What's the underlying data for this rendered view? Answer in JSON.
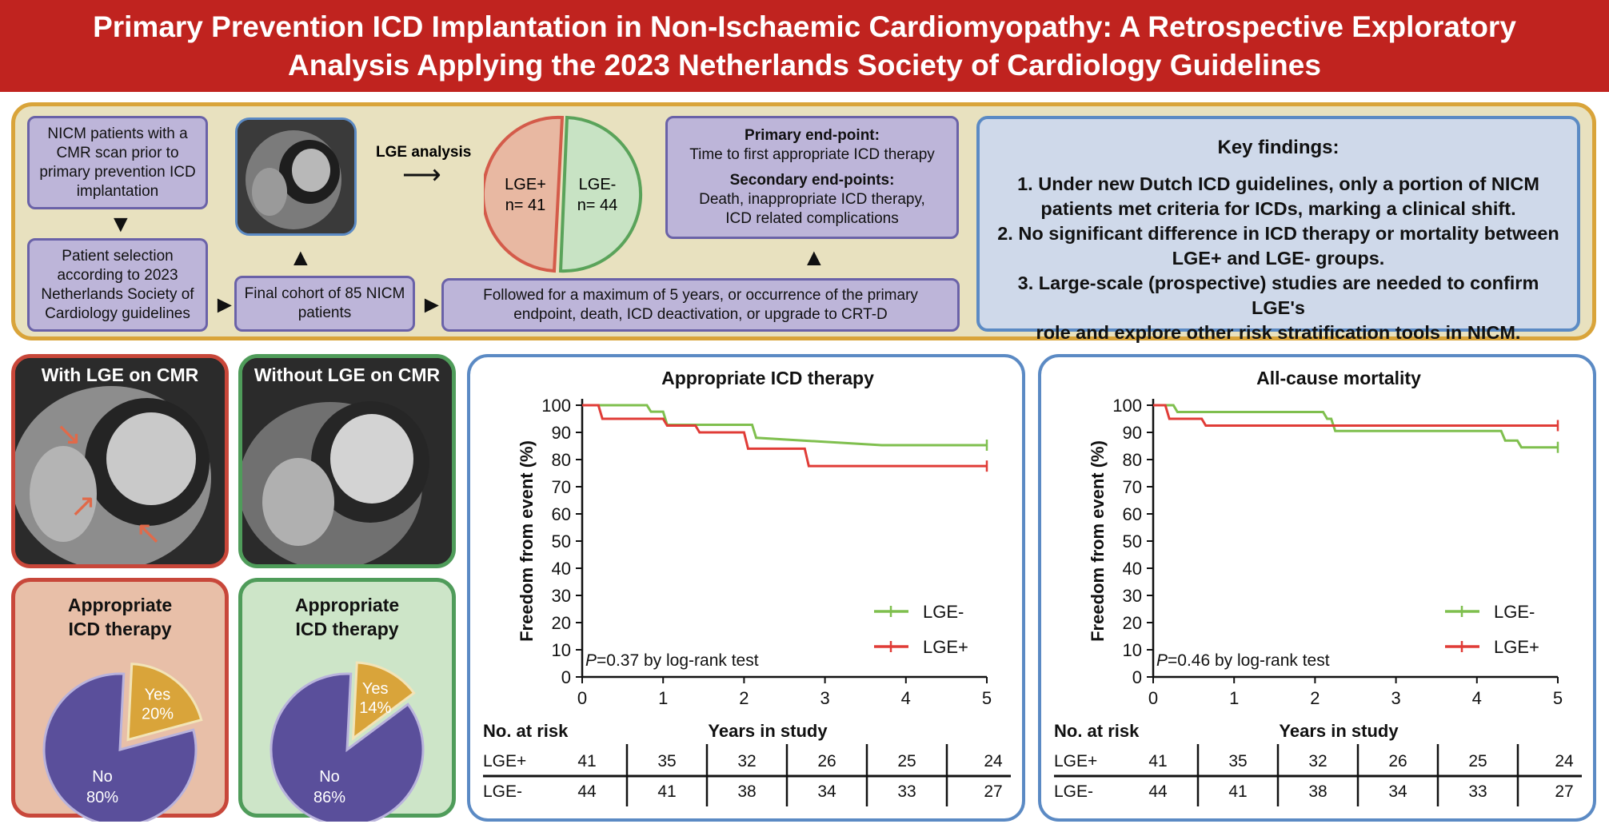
{
  "header": {
    "title_line1": "Primary Prevention ICD Implantation in Non-Ischaemic Cardiomyopathy: A Retrospective Exploratory",
    "title_line2": "Analysis Applying the 2023 Netherlands Society of Cardiology Guidelines"
  },
  "flow": {
    "nicm_patients": [
      "NICM patients with a",
      "CMR scan prior to",
      "primary prevention ICD",
      "implantation"
    ],
    "patient_selection": [
      "Patient selection",
      "according to 2023",
      "Netherlands Society of",
      "Cardiology guidelines"
    ],
    "final_cohort": [
      "Final cohort of 85 NICM",
      "patients"
    ],
    "lge_analysis": "LGE analysis",
    "lge_pos": {
      "label": "LGE+",
      "n": "n= 41"
    },
    "lge_neg": {
      "label": "LGE-",
      "n": "n= 44"
    },
    "primary_endpoint_title": "Primary end-point:",
    "primary_endpoint_text": "Time to first appropriate ICD therapy",
    "secondary_endpoint_title": "Secondary end-points:",
    "secondary_endpoint_text": [
      "Death, inappropriate ICD therapy,",
      "ICD related complications"
    ],
    "followup": [
      "Followed for a maximum of 5 years, or occurrence of the primary",
      "endpoint, death, ICD deactivation, or upgrade to CRT-D"
    ]
  },
  "key_findings": {
    "title": "Key findings:",
    "items": [
      [
        "1. Under new Dutch ICD guidelines, only a portion of NICM",
        "patients met criteria for ICDs, marking a clinical shift."
      ],
      [
        "2. No significant difference in ICD therapy or mortality between",
        "LGE+ and LGE- groups."
      ],
      [
        "3. Large-scale (prospective) studies are needed to confirm LGE's",
        "role and explore other risk stratification tools in NICM."
      ]
    ]
  },
  "cmr_images": {
    "with_lge": "With LGE on CMR",
    "without_lge": "Without LGE on CMR"
  },
  "pies": [
    {
      "title": [
        "Appropriate",
        "ICD therapy"
      ],
      "yes_label": "Yes",
      "yes_pct": "20%",
      "no_label": "No",
      "no_pct": "80%",
      "yes_value": 20
    },
    {
      "title": [
        "Appropriate",
        "ICD therapy"
      ],
      "yes_label": "Yes",
      "yes_pct": "14%",
      "no_label": "No",
      "no_pct": "86%",
      "yes_value": 14
    }
  ],
  "colors": {
    "header": "#c0231f",
    "lge_neg": "#7fbf4e",
    "lge_pos": "#e03c37",
    "pie_no": "#5a4f9b",
    "pie_yes": "#d9a43a",
    "border_blue": "#5b8ac4"
  },
  "chart_data": [
    {
      "type": "line",
      "title": "Appropriate ICD therapy",
      "xlabel": "Years in study",
      "ylabel": "Freedom from event (%)",
      "xlim": [
        0,
        5
      ],
      "ylim": [
        0,
        100
      ],
      "xticks": [
        "0",
        "1",
        "2",
        "3",
        "4",
        "5"
      ],
      "yticks": [
        "0",
        "10",
        "20",
        "30",
        "40",
        "50",
        "60",
        "70",
        "80",
        "90",
        "100"
      ],
      "annotation": "=0.37 by log-rank test",
      "annotation_p": "P",
      "series": [
        {
          "name": "LGE-",
          "x": [
            0,
            0.8,
            0.85,
            1.0,
            1.05,
            2.1,
            2.15,
            3.7,
            5.0
          ],
          "y": [
            100,
            100,
            97.6,
            97.6,
            92.8,
            92.8,
            88,
            85.3,
            85.3
          ]
        },
        {
          "name": "LGE+",
          "x": [
            0,
            0.2,
            0.25,
            1.0,
            1.05,
            1.4,
            1.45,
            2.0,
            2.05,
            2.75,
            2.8,
            5.0
          ],
          "y": [
            100,
            100,
            95,
            95,
            92.5,
            92.5,
            90,
            90,
            84,
            84,
            77.6,
            77.6
          ]
        }
      ],
      "at_risk": {
        "label": "No. at risk",
        "rows": [
          {
            "name": "LGE+",
            "values": [
              "41",
              "35",
              "32",
              "26",
              "25",
              "24"
            ]
          },
          {
            "name": "LGE-",
            "values": [
              "44",
              "41",
              "38",
              "34",
              "33",
              "27"
            ]
          }
        ]
      }
    },
    {
      "type": "line",
      "title": "All-cause mortality",
      "xlabel": "Years in study",
      "ylabel": "Freedom from event (%)",
      "xlim": [
        0,
        5
      ],
      "ylim": [
        0,
        100
      ],
      "xticks": [
        "0",
        "1",
        "2",
        "3",
        "4",
        "5"
      ],
      "yticks": [
        "0",
        "10",
        "20",
        "30",
        "40",
        "50",
        "60",
        "70",
        "80",
        "90",
        "100"
      ],
      "annotation": "=0.46 by log-rank test",
      "annotation_p": "P",
      "series": [
        {
          "name": "LGE-",
          "x": [
            0,
            0.25,
            0.3,
            2.1,
            2.15,
            2.2,
            2.25,
            4.3,
            4.35,
            4.5,
            4.55,
            5.0
          ],
          "y": [
            100,
            100,
            97.5,
            97.5,
            95,
            95,
            90.5,
            90.5,
            87,
            87,
            84.5,
            84.5
          ]
        },
        {
          "name": "LGE+",
          "x": [
            0,
            0.15,
            0.2,
            0.6,
            0.65,
            5.0
          ],
          "y": [
            100,
            100,
            95,
            95,
            92.5,
            92.5
          ]
        }
      ],
      "at_risk": {
        "label": "No. at risk",
        "rows": [
          {
            "name": "LGE+",
            "values": [
              "41",
              "35",
              "32",
              "26",
              "25",
              "24"
            ]
          },
          {
            "name": "LGE-",
            "values": [
              "44",
              "41",
              "38",
              "34",
              "33",
              "27"
            ]
          }
        ]
      }
    }
  ]
}
